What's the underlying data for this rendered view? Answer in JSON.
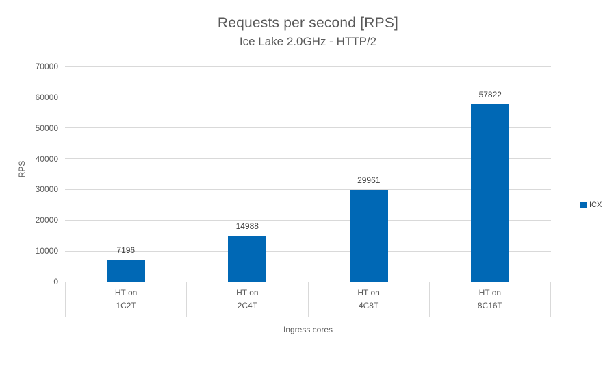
{
  "chart_data": {
    "type": "bar",
    "title": "Requests per second [RPS]",
    "subtitle": "Ice Lake 2.0GHz - HTTP/2",
    "xlabel": "Ingress cores",
    "ylabel": "RPS",
    "ylim": [
      0,
      70000
    ],
    "ytick_step": 10000,
    "ytick_labels": [
      "0",
      "10000",
      "20000",
      "30000",
      "40000",
      "50000",
      "60000",
      "70000"
    ],
    "grid": "horizontal",
    "legend_position": "right",
    "categories": [
      {
        "line1": "HT on",
        "line2": "1C2T"
      },
      {
        "line1": "HT on",
        "line2": "2C4T"
      },
      {
        "line1": "HT on",
        "line2": "4C8T"
      },
      {
        "line1": "HT on",
        "line2": "8C16T"
      }
    ],
    "series": [
      {
        "name": "ICX",
        "color": "#0068b5",
        "values": [
          7196,
          14988,
          29961,
          57822
        ]
      }
    ],
    "data_labels": [
      "7196",
      "14988",
      "29961",
      "57822"
    ]
  },
  "colors": {
    "gridline": "#d9d9d9",
    "title_text": "#595959",
    "axis_text": "#595959",
    "data_label_text": "#404040",
    "bar": "#0068b5",
    "background": "#ffffff"
  }
}
